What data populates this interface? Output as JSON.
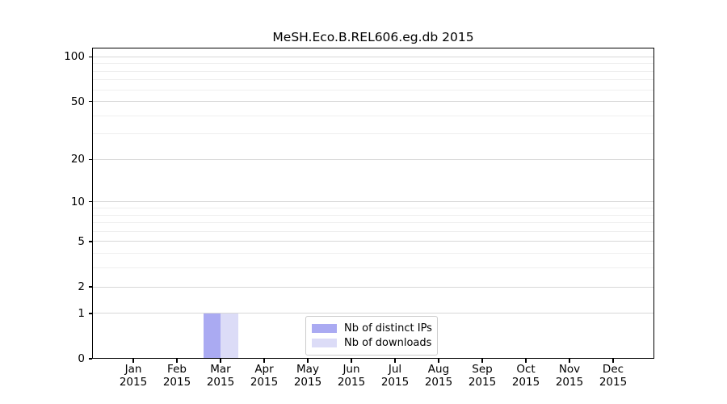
{
  "chart_data": {
    "type": "bar",
    "title": "MeSH.Eco.B.REL606.eg.db 2015",
    "categories": [
      "Jan",
      "Feb",
      "Mar",
      "Apr",
      "May",
      "Jun",
      "Jul",
      "Aug",
      "Sep",
      "Oct",
      "Nov",
      "Dec"
    ],
    "category_year": "2015",
    "series": [
      {
        "name": "Nb of distinct IPs",
        "color": "#aaaaf2",
        "values": [
          0,
          0,
          1,
          0,
          0,
          0,
          0,
          0,
          0,
          0,
          0,
          0
        ]
      },
      {
        "name": "Nb of downloads",
        "color": "#dcdcf7",
        "values": [
          0,
          0,
          1,
          0,
          0,
          0,
          0,
          0,
          0,
          0,
          0,
          0
        ]
      }
    ],
    "y_scale": "log10(1+y)",
    "ylim": [
      0,
      115
    ],
    "y_major_ticks": [
      100,
      50,
      20,
      10,
      5,
      2,
      1,
      0
    ],
    "y_minor_gridlines": [
      3,
      4,
      6,
      7,
      8,
      9,
      30,
      40,
      60,
      70,
      80,
      90
    ],
    "grid": "horizontal",
    "legend_position": "bottom-center",
    "xlabel": "",
    "ylabel": ""
  },
  "colors": {
    "background": "#ffffff",
    "axis": "#000000",
    "major_grid": "#d8d8d8",
    "minor_grid": "#efefef",
    "legend_border": "#cccccc",
    "text": "#000000"
  }
}
